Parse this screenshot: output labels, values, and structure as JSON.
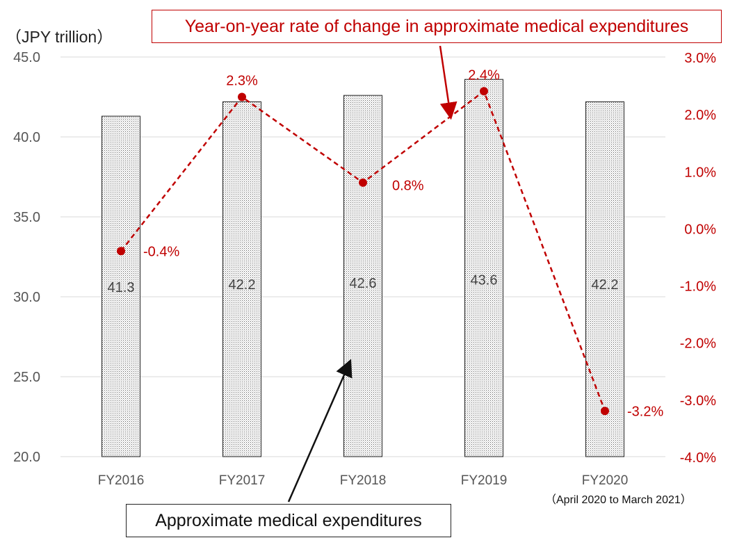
{
  "unit_label": "（JPY trillion）",
  "callouts": {
    "line": "Year-on-year rate of change in approximate medical expenditures",
    "bars": "Approximate medical expenditures"
  },
  "period_note": "（April 2020 to March 2021）",
  "colors": {
    "line": "#c00000",
    "bar_fill": "#e8e8e8",
    "bar_border": "#222222",
    "grid": "#d9d9d9",
    "left_axis_text": "#555555",
    "bar_label_text": "#444444"
  },
  "chart_data": {
    "type": "bar",
    "categories": [
      "FY2016",
      "FY2017",
      "FY2018",
      "FY2019",
      "FY2020"
    ],
    "series": [
      {
        "name": "Approximate medical expenditures",
        "type": "bar",
        "axis": "left",
        "values": [
          41.3,
          42.2,
          42.6,
          43.6,
          42.2
        ],
        "labels": [
          "41.3",
          "42.2",
          "42.6",
          "43.6",
          "42.2"
        ]
      },
      {
        "name": "Year-on-year rate of change in approximate medical expenditures",
        "type": "line",
        "axis": "right",
        "values": [
          -0.4,
          2.3,
          0.8,
          2.4,
          -3.2
        ],
        "labels": [
          "-0.4%",
          "2.3%",
          "0.8%",
          "2.4%",
          "-3.2%"
        ]
      }
    ],
    "left_axis": {
      "min": 20,
      "max": 45,
      "ticks": [
        20,
        25,
        30,
        35,
        40,
        45
      ],
      "tick_labels": [
        "20.0",
        "25.0",
        "30.0",
        "35.0",
        "40.0",
        "45.0"
      ]
    },
    "right_axis": {
      "min": -4,
      "max": 3,
      "ticks": [
        -4,
        -3,
        -2,
        -1,
        0,
        1,
        2,
        3
      ],
      "tick_labels": [
        "-4.0%",
        "-3.0%",
        "-2.0%",
        "-1.0%",
        "0.0%",
        "1.0%",
        "2.0%",
        "3.0%"
      ]
    },
    "grid": true,
    "legend": "callout boxes"
  }
}
